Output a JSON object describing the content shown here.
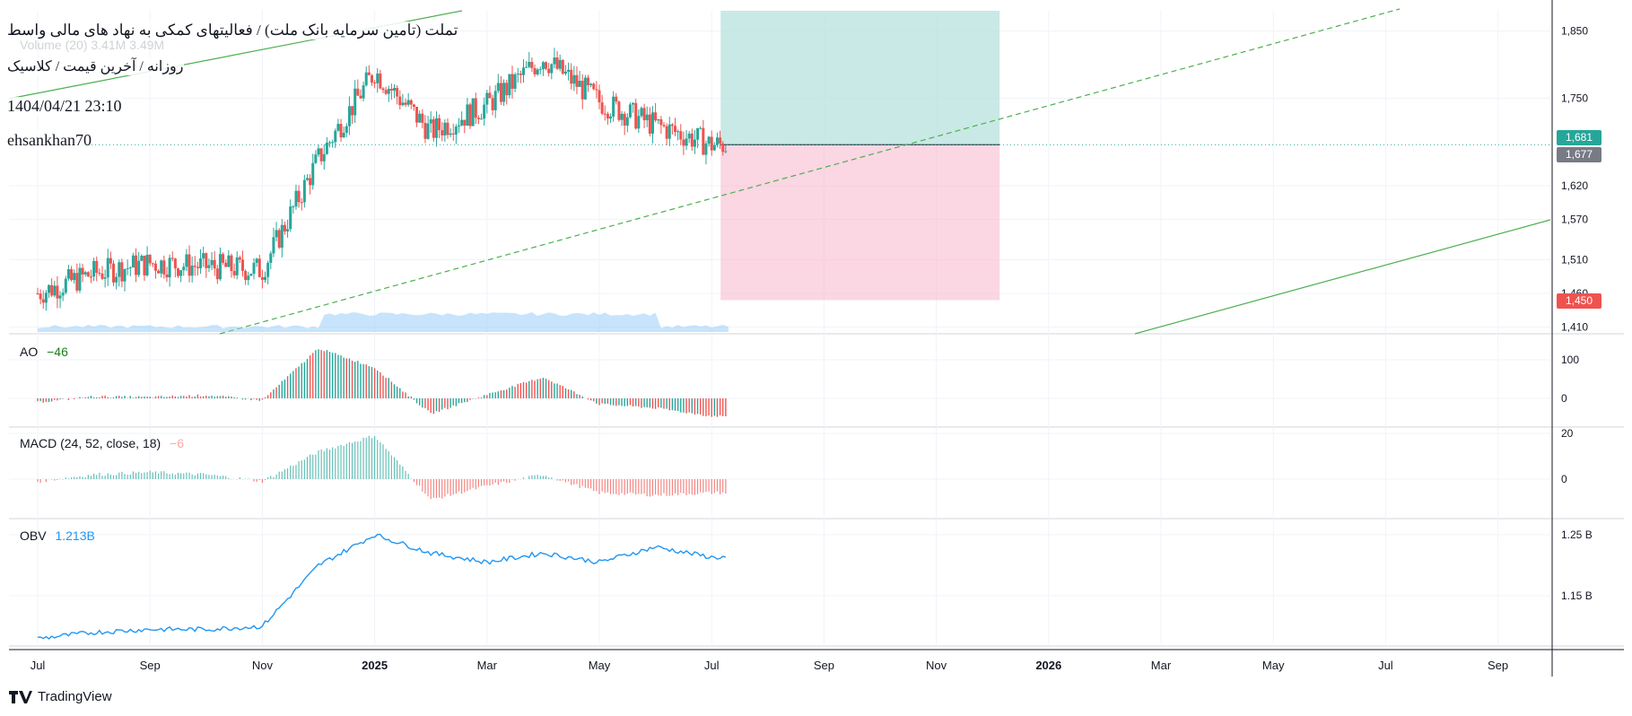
{
  "header": {
    "title": "تملت (تامین سرمایه بانک ملت) / فعالیتهای کمکی به نهاد های مالی واسط",
    "subtitle": "روزانه / آخرین قیمت / کلاسیک",
    "datetime": "1404/04/21 23:10",
    "author": "ehsankhan70",
    "volume_label": "Volume (20)  3.41M  3.49M"
  },
  "price_axis": {
    "ticks": [
      "1,850",
      "1,750",
      "1,620",
      "1,570",
      "1,510",
      "1,460",
      "1,410"
    ],
    "badge_last": "1,681",
    "badge_prev": "1,677",
    "badge_stop": "1,450"
  },
  "indicators": {
    "ao": {
      "label": "AO",
      "value": "−46",
      "ticks": [
        "100",
        "0"
      ]
    },
    "macd": {
      "label": "MACD (24, 52, close, 18)",
      "value": "−6",
      "ticks": [
        "20",
        "0"
      ]
    },
    "obv": {
      "label": "OBV",
      "value": "1.213B",
      "ticks": [
        "1.25 B",
        "1.15 B"
      ]
    }
  },
  "time_axis": {
    "labels": [
      "Jul",
      "Sep",
      "Nov",
      "2025",
      "Mar",
      "May",
      "Jul",
      "Sep",
      "Nov",
      "2026",
      "Mar",
      "May",
      "Jul",
      "Sep"
    ]
  },
  "colors": {
    "up": "#26a69a",
    "down": "#ef5350",
    "obv": "#2196f3",
    "trend": "#4caf50",
    "target_zone": "#b2dfdb",
    "stop_zone": "#f8bbd0"
  },
  "brand": {
    "name": "TradingView"
  },
  "chart_data": [
    {
      "type": "line",
      "title": "تملت (تامین سرمایه بانک ملت) / فعالیتهای کمکی به نهاد های مالی واسط",
      "xlabel": "",
      "ylabel": "",
      "x": [
        "2024-07",
        "2024-08",
        "2024-09",
        "2024-10",
        "2024-11",
        "2024-12",
        "2025-01",
        "2025-02",
        "2025-03",
        "2025-04",
        "2025-05",
        "2025-06",
        "2025-07"
      ],
      "series": [
        {
          "name": "",
          "values": [
            1460,
            1490,
            1505,
            1500,
            1495,
            1660,
            1790,
            1700,
            1740,
            1810,
            1745,
            1710,
            1681
          ]
        }
      ],
      "ylim": [
        1400,
        1880
      ],
      "last_price": 1681,
      "position": {
        "entry": 1681,
        "target": 1880,
        "stop": 1450,
        "to": "2025-12"
      }
    },
    {
      "type": "bar",
      "title": "AO",
      "xlabel": "",
      "ylabel": "",
      "x": [
        "2024-07",
        "2024-08",
        "2024-09",
        "2024-10",
        "2024-11",
        "2024-12",
        "2025-01",
        "2025-02",
        "2025-03",
        "2025-04",
        "2025-05",
        "2025-06",
        "2025-07"
      ],
      "series": [
        {
          "name": "",
          "values": [
            -10,
            5,
            3,
            8,
            -5,
            130,
            80,
            -40,
            10,
            55,
            -15,
            -25,
            -46
          ]
        }
      ]
    },
    {
      "type": "bar",
      "title": "MACD (24, 52, close, 18)",
      "xlabel": "",
      "ylabel": "",
      "x": [
        "2024-07",
        "2024-08",
        "2024-09",
        "2024-10",
        "2024-11",
        "2024-12",
        "2025-01",
        "2025-02",
        "2025-03",
        "2025-04",
        "2025-05",
        "2025-06",
        "2025-07"
      ],
      "series": [
        {
          "name": "",
          "values": [
            -1,
            2,
            3,
            2,
            -1,
            12,
            19,
            -9,
            -3,
            2,
            -6,
            -7,
            -6
          ]
        }
      ]
    },
    {
      "type": "line",
      "title": "OBV",
      "xlabel": "",
      "ylabel": "",
      "x": [
        "2024-07",
        "2024-08",
        "2024-09",
        "2024-10",
        "2024-11",
        "2024-12",
        "2025-01",
        "2025-02",
        "2025-03",
        "2025-04",
        "2025-05",
        "2025-06",
        "2025-07"
      ],
      "series": [
        {
          "name": "",
          "values": [
            1.08,
            1.09,
            1.095,
            1.095,
            1.1,
            1.2,
            1.25,
            1.22,
            1.205,
            1.22,
            1.205,
            1.23,
            1.213
          ]
        }
      ]
    }
  ]
}
